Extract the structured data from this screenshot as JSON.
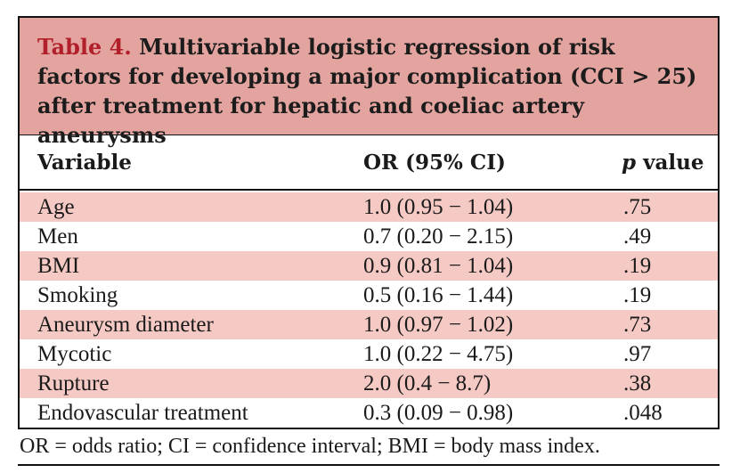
{
  "caption": {
    "label": "Table 4.",
    "text": "Multivariable logistic regression of risk factors for developing a major complication (CCI > 25) after treatment for hepatic and coeliac artery aneurysms"
  },
  "table": {
    "headers": {
      "variable": "Variable",
      "or_ci": "OR (95% CI)",
      "p_italic": "p",
      "p_rest": "value"
    },
    "rows": [
      {
        "variable": "Age",
        "or_ci": "1.0 (0.95 − 1.04)",
        "p": ".75"
      },
      {
        "variable": "Men",
        "or_ci": "0.7 (0.20 − 2.15)",
        "p": ".49"
      },
      {
        "variable": "BMI",
        "or_ci": "0.9 (0.81 − 1.04)",
        "p": ".19"
      },
      {
        "variable": "Smoking",
        "or_ci": "0.5 (0.16 − 1.44)",
        "p": ".19"
      },
      {
        "variable": "Aneurysm diameter",
        "or_ci": "1.0 (0.97 − 1.02)",
        "p": ".73"
      },
      {
        "variable": "Mycotic",
        "or_ci": "1.0 (0.22 − 4.75)",
        "p": ".97"
      },
      {
        "variable": "Rupture",
        "or_ci": "2.0 (0.4 − 8.7)",
        "p": ".38"
      },
      {
        "variable": "Endovascular treatment",
        "or_ci": "0.3 (0.09 − 0.98)",
        "p": ".048"
      }
    ]
  },
  "footnote": "OR = odds ratio; CI = confidence interval; BMI = body mass index.",
  "colors": {
    "caption_bg": "#e3a39e",
    "caption_label": "#b1202a",
    "row_shaded": "#f5c9c4"
  }
}
